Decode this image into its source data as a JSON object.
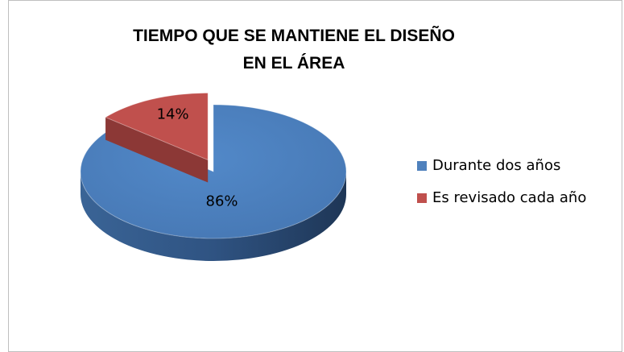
{
  "chart_data": {
    "type": "pie",
    "title": "TIEMPO QUE SE MANTIENE EL DISEÑO EN EL ÁREA",
    "categories": [
      "Durante dos años",
      "Es revisado cada año"
    ],
    "values": [
      86,
      14
    ],
    "value_labels": [
      "86%",
      "14%"
    ],
    "colors": [
      "#4f81bd",
      "#c0504d"
    ],
    "legend": "right"
  }
}
